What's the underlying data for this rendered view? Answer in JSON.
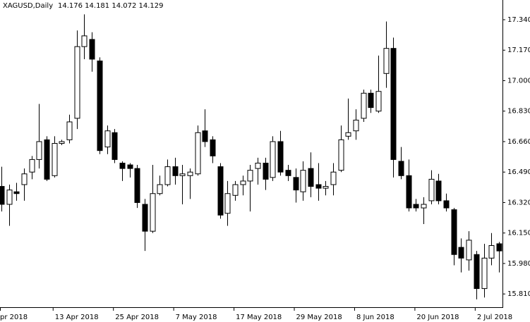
{
  "chart_data": {
    "type": "candlestick",
    "title": "XAGUSD,Daily",
    "subtitle": "14.176 14.181 14.072 14.129",
    "categories": [
      "pr 2018",
      null,
      null,
      null,
      null,
      null,
      null,
      "13 Apr 2018",
      null,
      null,
      null,
      null,
      null,
      null,
      null,
      "25 Apr 2018",
      null,
      null,
      null,
      null,
      null,
      null,
      null,
      "7 May 2018",
      null,
      null,
      null,
      null,
      null,
      null,
      null,
      "17 May 2018",
      null,
      null,
      null,
      null,
      null,
      null,
      null,
      "29 May 2018",
      null,
      null,
      null,
      null,
      null,
      null,
      null,
      "8 Jun 2018",
      null,
      null,
      null,
      null,
      null,
      null,
      null,
      "20 Jun 2018",
      null,
      null,
      null,
      null,
      null,
      null,
      null,
      "2 Jul 2018",
      null,
      null,
      null
    ],
    "open": [
      16.41,
      16.31,
      16.38,
      16.42,
      16.49,
      16.56,
      16.67,
      16.47,
      16.65,
      16.67,
      16.79,
      17.19,
      17.23,
      17.11,
      16.63,
      16.71,
      16.54,
      16.53,
      16.51,
      16.31,
      16.16,
      16.37,
      16.42,
      16.52,
      16.47,
      16.47,
      16.48,
      16.72,
      16.67,
      16.52,
      16.26,
      16.36,
      16.42,
      16.44,
      16.51,
      16.54,
      16.46,
      16.66,
      16.5,
      16.46,
      16.38,
      16.51,
      16.42,
      16.4,
      16.42,
      16.5,
      16.69,
      16.72,
      16.79,
      16.93,
      16.83,
      17.04,
      17.18,
      16.55,
      16.47,
      16.31,
      16.29,
      16.33,
      16.44,
      16.33,
      16.28,
      16.07,
      16.0,
      16.03,
      15.84,
      16.01,
      16.09
    ],
    "high": [
      16.52,
      16.42,
      16.43,
      16.51,
      16.58,
      16.87,
      16.69,
      16.69,
      16.67,
      16.81,
      17.28,
      17.37,
      17.27,
      17.13,
      16.75,
      16.73,
      16.55,
      16.54,
      16.53,
      16.34,
      16.53,
      16.47,
      16.56,
      16.57,
      16.53,
      16.51,
      16.75,
      16.84,
      16.69,
      16.54,
      16.44,
      16.44,
      16.47,
      16.53,
      16.57,
      16.57,
      16.69,
      16.72,
      16.53,
      16.51,
      16.55,
      16.6,
      16.54,
      16.44,
      16.54,
      16.75,
      16.9,
      16.84,
      16.95,
      16.95,
      17.14,
      17.33,
      17.24,
      16.63,
      16.56,
      16.34,
      16.35,
      16.5,
      16.48,
      16.37,
      16.29,
      16.12,
      16.16,
      16.05,
      16.09,
      16.15,
      16.1
    ],
    "low": [
      16.27,
      16.19,
      16.33,
      16.33,
      16.45,
      16.51,
      16.44,
      16.46,
      16.64,
      16.65,
      16.73,
      17.12,
      17.05,
      16.59,
      16.59,
      16.54,
      16.44,
      16.46,
      16.29,
      16.05,
      16.15,
      16.36,
      16.41,
      16.42,
      16.31,
      16.34,
      16.47,
      16.63,
      16.54,
      16.23,
      16.19,
      16.33,
      16.36,
      16.27,
      16.42,
      16.39,
      16.44,
      16.47,
      16.44,
      16.32,
      16.33,
      16.35,
      16.33,
      16.36,
      16.36,
      16.49,
      16.67,
      16.67,
      16.77,
      16.82,
      16.82,
      16.96,
      16.46,
      16.45,
      16.27,
      16.27,
      16.2,
      16.31,
      16.31,
      16.27,
      15.97,
      15.93,
      15.94,
      15.78,
      15.79,
      15.97,
      15.93
    ],
    "close": [
      16.31,
      16.39,
      16.37,
      16.48,
      16.56,
      16.66,
      16.45,
      16.65,
      16.66,
      16.77,
      17.19,
      17.25,
      17.12,
      16.61,
      16.72,
      16.56,
      16.51,
      16.51,
      16.32,
      16.16,
      16.37,
      16.42,
      16.52,
      16.47,
      16.48,
      16.49,
      16.71,
      16.66,
      16.58,
      16.25,
      16.37,
      16.42,
      16.44,
      16.5,
      16.54,
      16.45,
      16.66,
      16.49,
      16.47,
      16.39,
      16.5,
      16.41,
      16.4,
      16.41,
      16.49,
      16.67,
      16.71,
      16.78,
      16.93,
      16.85,
      16.94,
      17.18,
      16.56,
      16.47,
      16.29,
      16.29,
      16.31,
      16.45,
      16.33,
      16.29,
      16.03,
      16.01,
      16.11,
      15.84,
      16.01,
      16.08,
      16.05
    ],
    "up_color": "#ffffff",
    "down_color": "#000000",
    "ylim": [
      15.74,
      17.45
    ],
    "yticks": [
      {
        "value": 17.34,
        "label": "17.340"
      },
      {
        "value": 17.17,
        "label": "17.170"
      },
      {
        "value": 17.0,
        "label": "17.000"
      },
      {
        "value": 16.83,
        "label": "16.830"
      },
      {
        "value": 16.66,
        "label": "16.660"
      },
      {
        "value": 16.49,
        "label": "16.490"
      },
      {
        "value": 16.32,
        "label": "16.320"
      },
      {
        "value": 16.15,
        "label": "16.150"
      },
      {
        "value": 15.98,
        "label": "15.980"
      },
      {
        "value": 15.81,
        "label": "15.810"
      }
    ]
  }
}
